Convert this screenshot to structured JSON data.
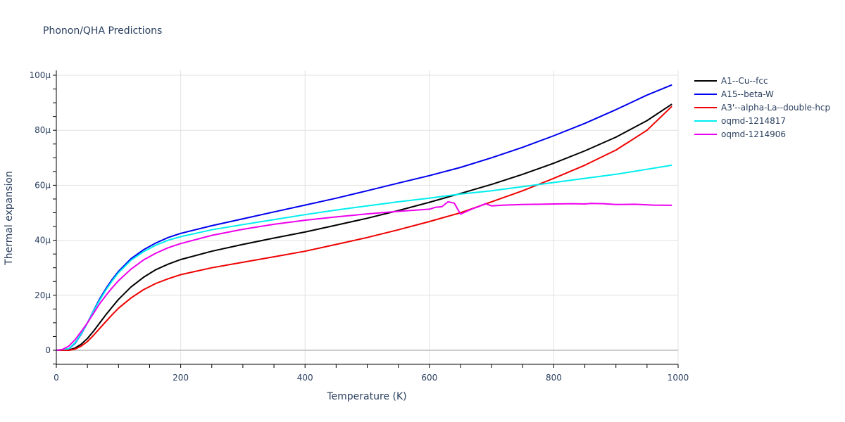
{
  "title": "Phonon/QHA Predictions",
  "chart_data": {
    "type": "line",
    "title": "Phonon/QHA Predictions",
    "xlabel": "Temperature (K)",
    "ylabel": "Thermal expansion",
    "xlim": [
      0,
      1000
    ],
    "ylim": [
      -5e-06,
      0.000101
    ],
    "xticks": [
      0,
      200,
      400,
      600,
      800,
      1000
    ],
    "xtick_labels": [
      "0",
      "200",
      "400",
      "600",
      "800",
      "1000"
    ],
    "yticks": [
      0,
      2e-05,
      4e-05,
      6e-05,
      8e-05,
      0.0001
    ],
    "ytick_labels": [
      "0",
      "20μ",
      "40μ",
      "60μ",
      "80μ",
      "100μ"
    ],
    "grid": true,
    "legend_position": "right",
    "series": [
      {
        "name": "A1--Cu--fcc",
        "color": "#000000",
        "x": [
          0,
          20,
          30,
          40,
          50,
          60,
          70,
          80,
          90,
          100,
          120,
          140,
          160,
          180,
          200,
          250,
          300,
          350,
          400,
          450,
          500,
          550,
          600,
          650,
          700,
          750,
          800,
          850,
          900,
          950,
          990
        ],
        "y": [
          0,
          0.1,
          0.8,
          2.2,
          4.3,
          7.0,
          10.0,
          13.0,
          15.8,
          18.5,
          23.0,
          26.5,
          29.3,
          31.3,
          33.0,
          36.0,
          38.5,
          40.8,
          43.0,
          45.5,
          48.0,
          50.8,
          53.8,
          57.0,
          60.3,
          64.0,
          68.0,
          72.5,
          77.5,
          83.5,
          89.5
        ]
      },
      {
        "name": "A15--beta-W",
        "color": "#0000ee",
        "x": [
          0,
          20,
          30,
          40,
          50,
          60,
          70,
          80,
          90,
          100,
          120,
          140,
          160,
          180,
          200,
          250,
          300,
          350,
          400,
          450,
          500,
          550,
          600,
          650,
          700,
          750,
          800,
          850,
          900,
          950,
          990
        ],
        "y": [
          0,
          0.5,
          2.5,
          5.8,
          10.0,
          14.5,
          18.8,
          22.5,
          25.8,
          28.7,
          33.3,
          36.5,
          39.0,
          41.0,
          42.5,
          45.3,
          47.8,
          50.3,
          52.8,
          55.3,
          58.0,
          60.8,
          63.5,
          66.5,
          70.0,
          73.8,
          78.0,
          82.5,
          87.5,
          92.8,
          96.5
        ]
      },
      {
        "name": "A3'--alpha-La--double-hcp",
        "color": "#ee0000",
        "x": [
          0,
          20,
          30,
          40,
          50,
          60,
          70,
          80,
          90,
          100,
          120,
          140,
          160,
          180,
          200,
          250,
          300,
          350,
          400,
          450,
          500,
          550,
          600,
          650,
          700,
          750,
          800,
          850,
          900,
          950,
          990
        ],
        "y": [
          0,
          0.0,
          0.4,
          1.5,
          3.2,
          5.5,
          8.0,
          10.5,
          13.0,
          15.3,
          19.0,
          22.0,
          24.3,
          26.0,
          27.5,
          30.0,
          32.0,
          34.0,
          36.0,
          38.5,
          41.0,
          43.8,
          46.8,
          50.0,
          54.0,
          58.0,
          62.5,
          67.3,
          72.8,
          80.0,
          88.7
        ]
      },
      {
        "name": "oqmd-1214817",
        "color": "#00eeee",
        "x": [
          0,
          20,
          30,
          40,
          50,
          60,
          70,
          80,
          90,
          100,
          120,
          140,
          160,
          180,
          200,
          250,
          300,
          350,
          400,
          450,
          500,
          550,
          600,
          650,
          700,
          750,
          800,
          850,
          900,
          950,
          990
        ],
        "y": [
          0,
          0.6,
          2.7,
          6.0,
          10.0,
          14.3,
          18.3,
          22.0,
          25.3,
          28.2,
          32.7,
          35.8,
          38.2,
          40.0,
          41.3,
          43.8,
          45.7,
          47.5,
          49.3,
          51.0,
          52.5,
          54.0,
          55.3,
          56.8,
          58.0,
          59.5,
          61.0,
          62.5,
          64.0,
          65.8,
          67.3
        ]
      },
      {
        "name": "oqmd-1214906",
        "color": "#ee00ee",
        "x": [
          0,
          10,
          20,
          30,
          40,
          50,
          60,
          70,
          80,
          90,
          100,
          120,
          140,
          160,
          180,
          200,
          250,
          300,
          350,
          400,
          450,
          500,
          550,
          600,
          610,
          620,
          630,
          640,
          650,
          660,
          670,
          680,
          690,
          700,
          720,
          750,
          800,
          830,
          850,
          860,
          880,
          900,
          930,
          960,
          990
        ],
        "y": [
          0,
          0.3,
          1.5,
          3.8,
          6.8,
          10.0,
          13.5,
          17.0,
          20.0,
          22.8,
          25.3,
          29.5,
          32.8,
          35.3,
          37.3,
          38.8,
          41.8,
          44.0,
          45.8,
          47.3,
          48.5,
          49.6,
          50.5,
          51.3,
          52.0,
          52.2,
          54.0,
          53.5,
          49.5,
          50.5,
          51.5,
          52.3,
          53.3,
          52.5,
          52.8,
          53.0,
          53.2,
          53.3,
          53.2,
          53.4,
          53.3,
          53.0,
          53.1,
          52.8,
          52.7
        ]
      }
    ]
  },
  "axes": {
    "xlabel": "Temperature (K)",
    "ylabel": "Thermal expansion"
  },
  "legend": {
    "items": [
      {
        "label": "A1--Cu--fcc",
        "color": "#000000"
      },
      {
        "label": "A15--beta-W",
        "color": "#0000ee"
      },
      {
        "label": "A3'--alpha-La--double-hcp",
        "color": "#ee0000"
      },
      {
        "label": "oqmd-1214817",
        "color": "#00eeee"
      },
      {
        "label": "oqmd-1214906",
        "color": "#ee00ee"
      }
    ]
  }
}
